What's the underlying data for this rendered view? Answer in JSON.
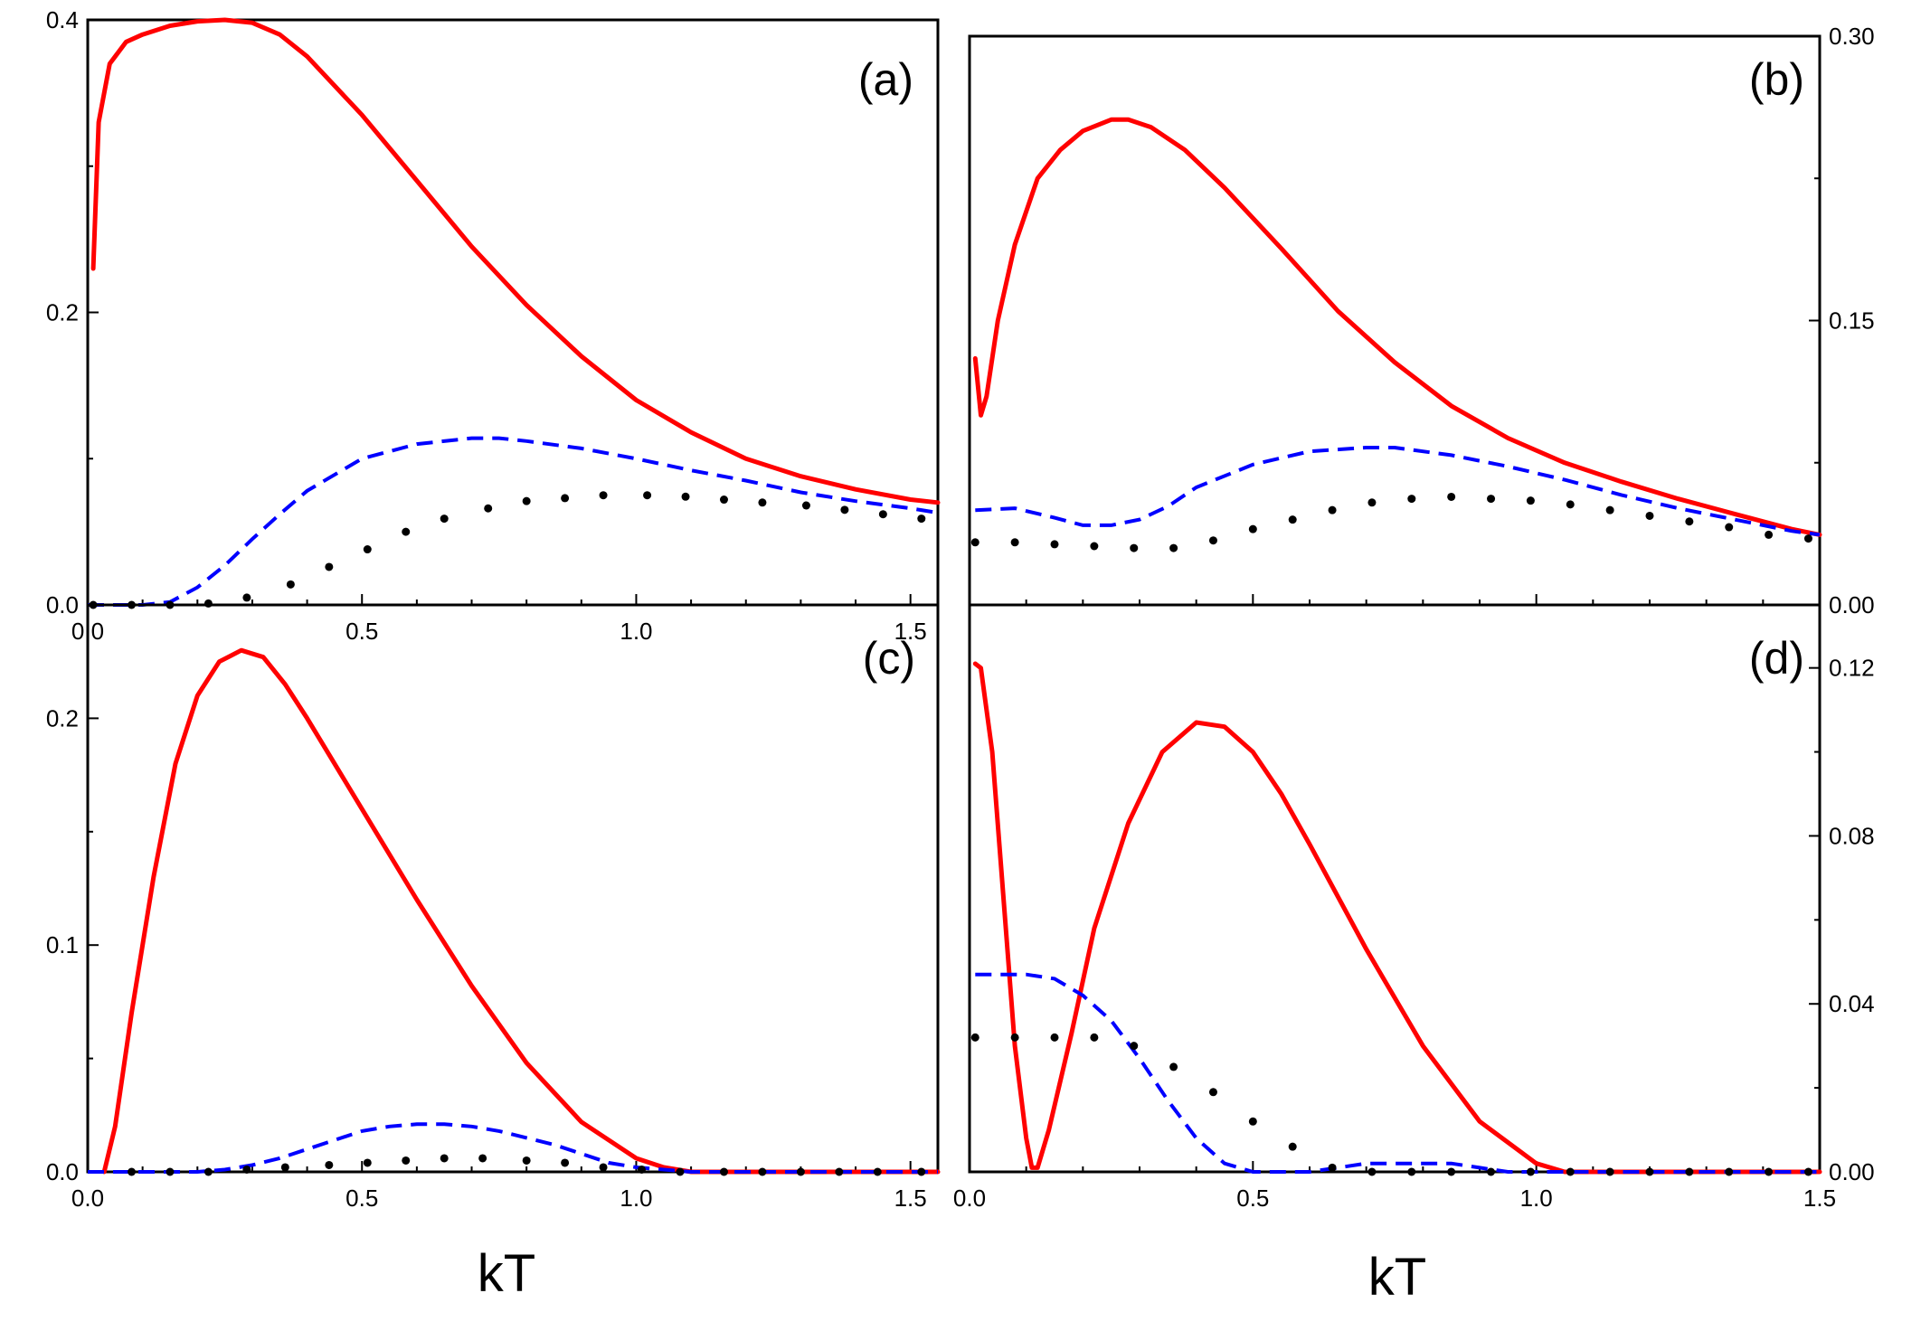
{
  "colors": {
    "solid": "#ff0000",
    "dashed": "#0000ff",
    "dotted": "#000000"
  },
  "xlabels": [
    "kT",
    "kT"
  ],
  "chart_data": [
    {
      "panel": "(a)",
      "type": "line",
      "xlim": [
        0,
        1.55
      ],
      "ylim": [
        0,
        0.4
      ],
      "xticks": [
        "0.0",
        "0.5",
        "1.0",
        "1.5"
      ],
      "yticks": [
        {
          "value": 0,
          "label": "0.0"
        },
        {
          "value": 0.2,
          "label": "0.2"
        },
        {
          "value": 0.4,
          "label": "0.4"
        }
      ],
      "yaxis_side": "left",
      "series": [
        {
          "name": "solid",
          "style": "solid",
          "x": [
            0.01,
            0.02,
            0.04,
            0.07,
            0.1,
            0.15,
            0.2,
            0.25,
            0.3,
            0.35,
            0.4,
            0.5,
            0.6,
            0.7,
            0.8,
            0.9,
            1.0,
            1.1,
            1.2,
            1.3,
            1.4,
            1.5,
            1.55
          ],
          "y": [
            0.23,
            0.33,
            0.37,
            0.385,
            0.39,
            0.396,
            0.399,
            0.4,
            0.398,
            0.39,
            0.375,
            0.335,
            0.29,
            0.245,
            0.205,
            0.17,
            0.14,
            0.118,
            0.1,
            0.088,
            0.079,
            0.072,
            0.07
          ]
        },
        {
          "name": "dashed",
          "style": "dashed",
          "x": [
            0,
            0.1,
            0.15,
            0.2,
            0.25,
            0.3,
            0.35,
            0.4,
            0.5,
            0.6,
            0.7,
            0.75,
            0.8,
            0.9,
            1.0,
            1.1,
            1.2,
            1.3,
            1.4,
            1.5,
            1.55
          ],
          "y": [
            0,
            0,
            0.002,
            0.012,
            0.027,
            0.045,
            0.062,
            0.078,
            0.1,
            0.11,
            0.114,
            0.114,
            0.112,
            0.107,
            0.1,
            0.092,
            0.085,
            0.077,
            0.071,
            0.066,
            0.063
          ]
        },
        {
          "name": "dotted",
          "style": "dotted",
          "x": [
            0.01,
            0.08,
            0.15,
            0.22,
            0.29,
            0.37,
            0.44,
            0.51,
            0.58,
            0.65,
            0.73,
            0.8,
            0.87,
            0.94,
            1.02,
            1.09,
            1.16,
            1.23,
            1.31,
            1.38,
            1.45,
            1.52
          ],
          "y": [
            0,
            0,
            0,
            0.001,
            0.005,
            0.014,
            0.026,
            0.038,
            0.05,
            0.059,
            0.066,
            0.071,
            0.073,
            0.075,
            0.075,
            0.074,
            0.072,
            0.07,
            0.068,
            0.065,
            0.062,
            0.059
          ]
        }
      ]
    },
    {
      "panel": "(b)",
      "type": "line",
      "xlim": [
        0,
        1.5
      ],
      "ylim": [
        0,
        0.3
      ],
      "xticks": [],
      "yticks": [
        {
          "value": 0,
          "label": "0.00"
        },
        {
          "value": 0.15,
          "label": "0.15"
        },
        {
          "value": 0.3,
          "label": "0.30"
        }
      ],
      "yaxis_side": "right",
      "series": [
        {
          "name": "solid",
          "style": "solid",
          "x": [
            0.01,
            0.02,
            0.03,
            0.05,
            0.08,
            0.12,
            0.16,
            0.2,
            0.25,
            0.28,
            0.32,
            0.38,
            0.45,
            0.55,
            0.65,
            0.75,
            0.85,
            0.95,
            1.05,
            1.15,
            1.25,
            1.35,
            1.45,
            1.5
          ],
          "y": [
            0.13,
            0.1,
            0.11,
            0.15,
            0.19,
            0.225,
            0.24,
            0.25,
            0.256,
            0.256,
            0.252,
            0.24,
            0.22,
            0.188,
            0.155,
            0.128,
            0.105,
            0.088,
            0.075,
            0.065,
            0.056,
            0.048,
            0.04,
            0.037
          ]
        },
        {
          "name": "dashed",
          "style": "dashed",
          "x": [
            0.01,
            0.08,
            0.15,
            0.2,
            0.25,
            0.3,
            0.35,
            0.4,
            0.5,
            0.6,
            0.7,
            0.75,
            0.85,
            0.95,
            1.05,
            1.15,
            1.25,
            1.35,
            1.45,
            1.5
          ],
          "y": [
            0.05,
            0.051,
            0.046,
            0.042,
            0.042,
            0.045,
            0.052,
            0.062,
            0.074,
            0.081,
            0.083,
            0.083,
            0.079,
            0.073,
            0.066,
            0.058,
            0.051,
            0.045,
            0.039,
            0.037
          ]
        },
        {
          "name": "dotted",
          "style": "dotted",
          "x": [
            0.01,
            0.08,
            0.15,
            0.22,
            0.29,
            0.36,
            0.43,
            0.5,
            0.57,
            0.64,
            0.71,
            0.78,
            0.85,
            0.92,
            0.99,
            1.06,
            1.13,
            1.2,
            1.27,
            1.34,
            1.41,
            1.48
          ],
          "y": [
            0.033,
            0.033,
            0.032,
            0.031,
            0.03,
            0.03,
            0.034,
            0.04,
            0.045,
            0.05,
            0.054,
            0.056,
            0.057,
            0.056,
            0.055,
            0.053,
            0.05,
            0.047,
            0.044,
            0.041,
            0.037,
            0.035
          ]
        }
      ]
    },
    {
      "panel": "(c)",
      "type": "line",
      "xlim": [
        0,
        1.55
      ],
      "ylim": [
        0,
        0.25
      ],
      "xticks": [
        "0.0",
        "0.5",
        "1.0",
        "1.5"
      ],
      "yticks": [
        {
          "value": 0,
          "label": "0.0"
        },
        {
          "value": 0.1,
          "label": "0.1"
        },
        {
          "value": 0.2,
          "label": "0.2"
        }
      ],
      "yaxis_side": "left",
      "series": [
        {
          "name": "solid",
          "style": "solid",
          "x": [
            0.03,
            0.05,
            0.08,
            0.12,
            0.16,
            0.2,
            0.24,
            0.28,
            0.32,
            0.36,
            0.4,
            0.5,
            0.6,
            0.7,
            0.8,
            0.9,
            1.0,
            1.05,
            1.1,
            1.2,
            1.3,
            1.4,
            1.55
          ],
          "y": [
            0,
            0.02,
            0.07,
            0.13,
            0.18,
            0.21,
            0.225,
            0.23,
            0.227,
            0.215,
            0.2,
            0.16,
            0.12,
            0.082,
            0.048,
            0.022,
            0.006,
            0.002,
            0,
            0,
            0,
            0,
            0
          ]
        },
        {
          "name": "dashed",
          "style": "dashed",
          "x": [
            0,
            0.2,
            0.25,
            0.3,
            0.35,
            0.4,
            0.45,
            0.5,
            0.55,
            0.6,
            0.65,
            0.7,
            0.75,
            0.8,
            0.85,
            0.9,
            0.95,
            1.0,
            1.05,
            1.1,
            1.55
          ],
          "y": [
            0,
            0,
            0.001,
            0.003,
            0.006,
            0.01,
            0.014,
            0.018,
            0.02,
            0.021,
            0.021,
            0.02,
            0.018,
            0.015,
            0.012,
            0.008,
            0.004,
            0.002,
            0.001,
            0,
            0
          ]
        },
        {
          "name": "dotted",
          "style": "dotted",
          "x": [
            0.08,
            0.15,
            0.22,
            0.29,
            0.36,
            0.44,
            0.51,
            0.58,
            0.65,
            0.72,
            0.8,
            0.87,
            0.94,
            1.01,
            1.08,
            1.16,
            1.23,
            1.3,
            1.37,
            1.44,
            1.52
          ],
          "y": [
            0,
            0,
            0,
            0.001,
            0.002,
            0.003,
            0.004,
            0.005,
            0.006,
            0.006,
            0.005,
            0.004,
            0.002,
            0.001,
            0,
            0,
            0,
            0,
            0,
            0,
            0
          ]
        }
      ]
    },
    {
      "panel": "(d)",
      "type": "line",
      "xlim": [
        0,
        1.5
      ],
      "ylim": [
        0,
        0.135
      ],
      "xticks": [
        "0.0",
        "0.5",
        "1.0",
        "1.5"
      ],
      "yticks": [
        {
          "value": 0,
          "label": "0.00"
        },
        {
          "value": 0.04,
          "label": "0.04"
        },
        {
          "value": 0.08,
          "label": "0.08"
        },
        {
          "value": 0.12,
          "label": "0.12"
        }
      ],
      "yaxis_side": "right",
      "series": [
        {
          "name": "solid",
          "style": "solid",
          "x": [
            0.01,
            0.02,
            0.04,
            0.06,
            0.08,
            0.1,
            0.11,
            0.12,
            0.14,
            0.18,
            0.22,
            0.28,
            0.34,
            0.4,
            0.45,
            0.5,
            0.55,
            0.6,
            0.7,
            0.8,
            0.9,
            1.0,
            1.05,
            1.1,
            1.2,
            1.3,
            1.4,
            1.5
          ],
          "y": [
            0.121,
            0.12,
            0.1,
            0.065,
            0.03,
            0.008,
            0.001,
            0.001,
            0.01,
            0.033,
            0.058,
            0.083,
            0.1,
            0.107,
            0.106,
            0.1,
            0.09,
            0.078,
            0.053,
            0.03,
            0.012,
            0.002,
            0,
            0,
            0,
            0,
            0,
            0
          ]
        },
        {
          "name": "dashed",
          "style": "dashed",
          "x": [
            0.01,
            0.05,
            0.1,
            0.15,
            0.2,
            0.25,
            0.3,
            0.35,
            0.4,
            0.45,
            0.5,
            0.55,
            0.6,
            0.65,
            0.7,
            0.75,
            0.8,
            0.85,
            0.9,
            0.95,
            1.0,
            1.5
          ],
          "y": [
            0.047,
            0.047,
            0.047,
            0.046,
            0.042,
            0.036,
            0.027,
            0.017,
            0.008,
            0.002,
            0,
            0,
            0,
            0.001,
            0.002,
            0.002,
            0.002,
            0.002,
            0.001,
            0,
            0,
            0
          ]
        },
        {
          "name": "dotted",
          "style": "dotted",
          "x": [
            0.01,
            0.08,
            0.15,
            0.22,
            0.29,
            0.36,
            0.43,
            0.5,
            0.57,
            0.64,
            0.71,
            0.78,
            0.85,
            0.92,
            0.99,
            1.06,
            1.13,
            1.2,
            1.27,
            1.34,
            1.41,
            1.48
          ],
          "y": [
            0.032,
            0.032,
            0.032,
            0.032,
            0.03,
            0.025,
            0.019,
            0.012,
            0.006,
            0.001,
            0,
            0,
            0,
            0,
            0,
            0,
            0,
            0,
            0,
            0,
            0,
            0
          ]
        }
      ]
    }
  ]
}
